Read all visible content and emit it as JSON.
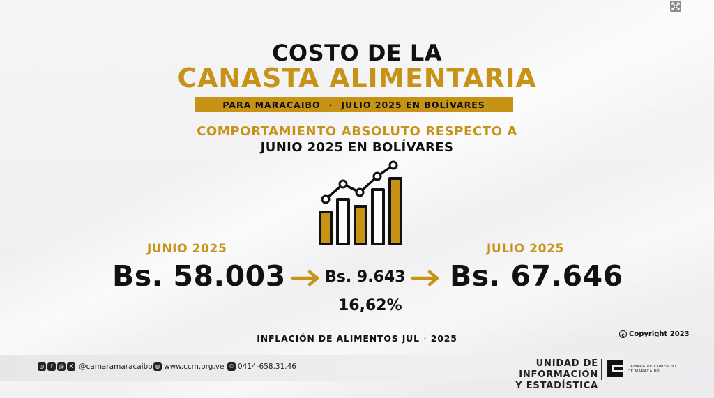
{
  "header": {
    "title_line1": "COSTO DE LA",
    "title_line2": "CANASTA ALIMENTARIA",
    "ribbon_left": "PARA MARACAIBO",
    "ribbon_separator": "·",
    "ribbon_right": "JULIO 2025 EN BOLÍVARES",
    "subtitle_line1": "COMPORTAMIENTO ABSOLUTO RESPECTO A",
    "subtitle_line2": "JUNIO 2025 EN BOLÍVARES"
  },
  "comparison": {
    "previous": {
      "label": "JUNIO 2025",
      "value": "Bs. 58.003"
    },
    "difference": {
      "value": "Bs. 9.643",
      "percent": "16,62%"
    },
    "current": {
      "label": "JULIO 2025",
      "value": "Bs. 67.646"
    }
  },
  "footer": {
    "inflation_left": "INFLACIÓN DE ALIMENTOS JUL",
    "inflation_separator": "·",
    "inflation_right": "2025",
    "copyright": "Copyright 2023",
    "social_handle": "@camaramaracaibo",
    "website": "www.ccm.org.ve",
    "phone": "0414-658.31.46",
    "unit_line1": "UNIDAD DE INFORMACIÓN",
    "unit_line2": "Y ESTADÍSTICA",
    "org_line1": "CÁMARA DE COMERCIO",
    "org_line2": "DE MARACAIBO"
  },
  "icons": {
    "growth_chart": "bar-chart-trend-icon",
    "arrow": "arrow-right-icon",
    "expand": "expand-icon",
    "social": [
      "instagram-icon",
      "facebook-icon",
      "threads-icon",
      "x-icon"
    ],
    "web": "globe-icon",
    "phone": "whatsapp-icon"
  },
  "colors": {
    "accent": "#c79316",
    "text": "#111111",
    "background": "#f1f1f3"
  }
}
